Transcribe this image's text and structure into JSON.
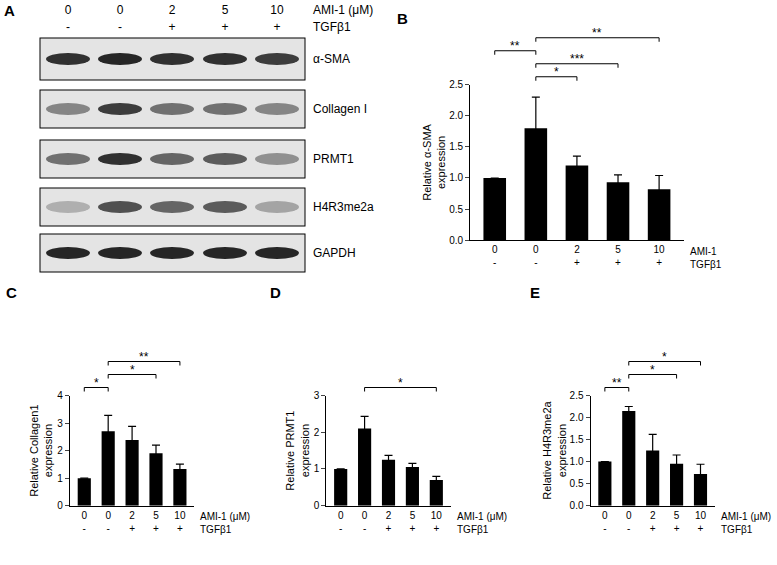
{
  "blot": {
    "panel": "A",
    "header_rows": [
      {
        "label": "AMI-1 (μM)",
        "values": [
          "0",
          "0",
          "2",
          "5",
          "10"
        ]
      },
      {
        "label": "TGFβ1",
        "values": [
          "-",
          "-",
          "+",
          "+",
          "+"
        ]
      }
    ],
    "rows": [
      {
        "label": "α-SMA",
        "bands": [
          0.85,
          0.9,
          0.85,
          0.85,
          0.8
        ]
      },
      {
        "label": "Collagen I",
        "bands": [
          0.45,
          0.8,
          0.55,
          0.55,
          0.45
        ]
      },
      {
        "label": "PRMT1",
        "bands": [
          0.55,
          0.85,
          0.6,
          0.65,
          0.4
        ]
      },
      {
        "label": "H4R3me2a",
        "bands": [
          0.25,
          0.7,
          0.6,
          0.65,
          0.3
        ]
      },
      {
        "label": "GAPDH",
        "bands": [
          0.9,
          0.9,
          0.9,
          0.9,
          0.9
        ]
      }
    ]
  },
  "chart_data": [
    {
      "panel": "B",
      "type": "bar",
      "color": "#000000",
      "grid": false,
      "categories": [
        "0",
        "0",
        "2",
        "5",
        "10"
      ],
      "xlabel": "AMI-1",
      "categories2": [
        "-",
        "-",
        "+",
        "+",
        "+"
      ],
      "xlabel2": "TGFβ1",
      "ylabel": "Relative α-SMA expression",
      "values": [
        1.0,
        1.8,
        1.2,
        0.93,
        0.82
      ],
      "errors": [
        0,
        0.5,
        0.15,
        0.12,
        0.22
      ],
      "ylim": [
        0,
        2.5
      ],
      "yticks": [
        {
          "value": 0,
          "label": "0.0"
        },
        {
          "value": 0.5,
          "label": "0.5"
        },
        {
          "value": 1,
          "label": "1.0"
        },
        {
          "value": 1.5,
          "label": "1.5"
        },
        {
          "value": 2,
          "label": "2.0"
        },
        {
          "value": 2.5,
          "label": "2.5"
        }
      ],
      "comparisons": [
        {
          "pair": [
            1,
            2
          ],
          "label": "*"
        },
        {
          "pair": [
            1,
            3
          ],
          "label": "***"
        },
        {
          "pair": [
            0,
            1
          ],
          "label": "**"
        },
        {
          "pair": [
            1,
            4
          ],
          "label": "**"
        }
      ]
    },
    {
      "panel": "C",
      "type": "bar",
      "color": "#000000",
      "grid": false,
      "categories": [
        "0",
        "0",
        "2",
        "5",
        "10"
      ],
      "xlabel": "AMI-1 (μM)",
      "categories2": [
        "-",
        "-",
        "+",
        "+",
        "+"
      ],
      "xlabel2": "TGFβ1",
      "ylabel": "Relative Collagen1 expression",
      "values": [
        1.0,
        2.7,
        2.38,
        1.9,
        1.33
      ],
      "errors": [
        0,
        0.58,
        0.5,
        0.3,
        0.18
      ],
      "ylim": [
        0,
        4
      ],
      "yticks": [
        0,
        1,
        2,
        3,
        4
      ],
      "comparisons": [
        {
          "pair": [
            0,
            1
          ],
          "label": "*"
        },
        {
          "pair": [
            1,
            3
          ],
          "label": "*"
        },
        {
          "pair": [
            1,
            4
          ],
          "label": "**"
        }
      ]
    },
    {
      "panel": "D",
      "type": "bar",
      "color": "#000000",
      "grid": false,
      "categories": [
        "0",
        "0",
        "2",
        "5",
        "10"
      ],
      "xlabel": "AMI-1 (μM)",
      "categories2": [
        "-",
        "-",
        "+",
        "+",
        "+"
      ],
      "xlabel2": "TGFβ1",
      "ylabel": "Relative PRMT1 expression",
      "values": [
        1.0,
        2.1,
        1.25,
        1.05,
        0.7
      ],
      "errors": [
        0,
        0.33,
        0.12,
        0.1,
        0.1
      ],
      "ylim": [
        0,
        3
      ],
      "yticks": [
        0,
        1,
        2,
        3
      ],
      "comparisons": [
        {
          "pair": [
            1,
            4
          ],
          "label": "*"
        }
      ]
    },
    {
      "panel": "E",
      "type": "bar",
      "color": "#000000",
      "grid": false,
      "categories": [
        "0",
        "0",
        "2",
        "5",
        "10"
      ],
      "xlabel": "AMI-1 (μM)",
      "categories2": [
        "-",
        "-",
        "+",
        "+",
        "+"
      ],
      "xlabel2": "TGFβ1",
      "ylabel": "Relative H4R3me2a expression",
      "values": [
        1.0,
        2.15,
        1.25,
        0.95,
        0.72
      ],
      "errors": [
        0,
        0.1,
        0.37,
        0.2,
        0.22
      ],
      "ylim": [
        0,
        2.5
      ],
      "yticks": [
        {
          "value": 0,
          "label": "0.0"
        },
        {
          "value": 0.5,
          "label": "0.5"
        },
        {
          "value": 1,
          "label": "1.0"
        },
        {
          "value": 1.5,
          "label": "1.5"
        },
        {
          "value": 2,
          "label": "2.0"
        },
        {
          "value": 2.5,
          "label": "2.5"
        }
      ],
      "comparisons": [
        {
          "pair": [
            0,
            1
          ],
          "label": "**"
        },
        {
          "pair": [
            1,
            3
          ],
          "label": "*"
        },
        {
          "pair": [
            1,
            4
          ],
          "label": "*"
        }
      ]
    }
  ]
}
